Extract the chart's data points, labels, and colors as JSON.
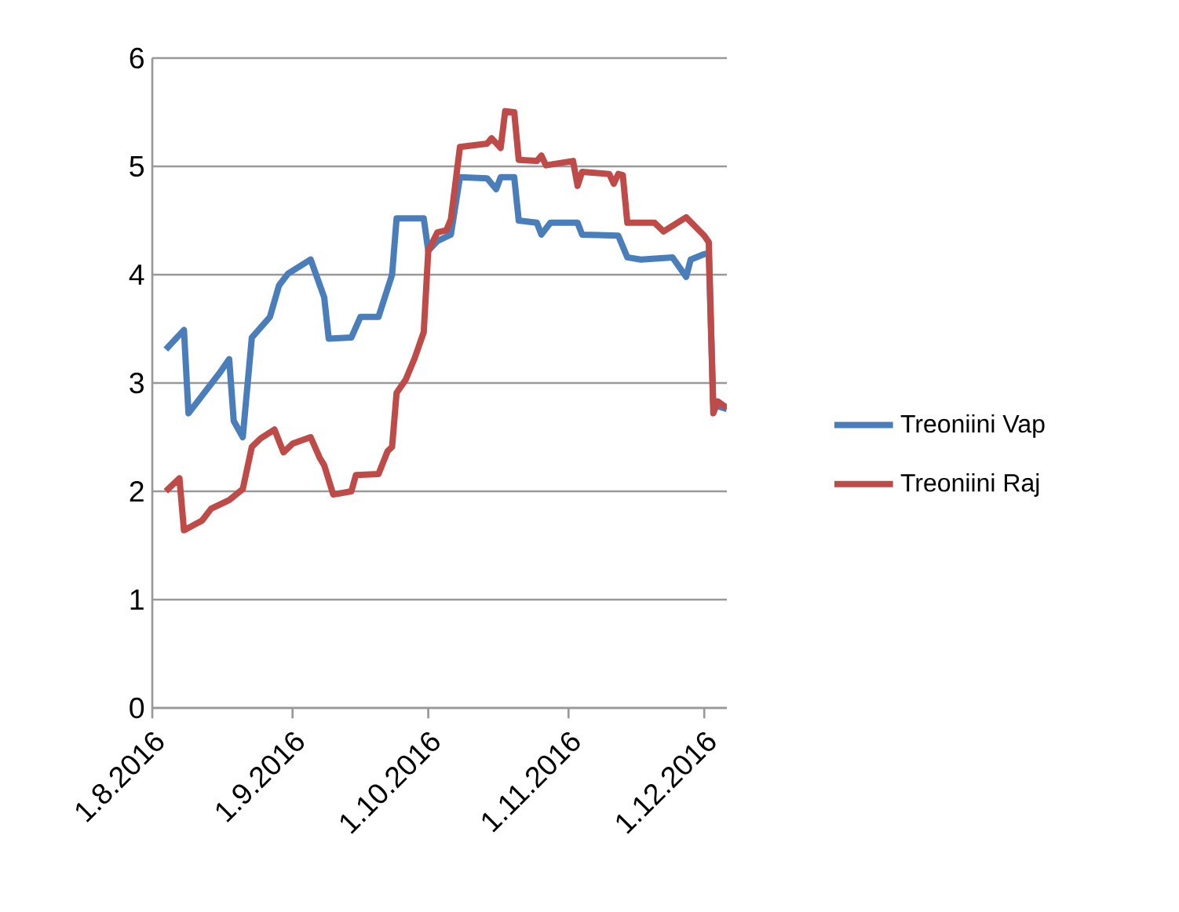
{
  "chart_data": {
    "type": "line",
    "xlim": [
      "2016-08-01",
      "2016-12-06"
    ],
    "xticks": [
      {
        "value": "2016-08-01",
        "label": "1.8.2016"
      },
      {
        "value": "2016-09-01",
        "label": "1.9.2016"
      },
      {
        "value": "2016-10-01",
        "label": "1.10.2016"
      },
      {
        "value": "2016-11-01",
        "label": "1.11.2016"
      },
      {
        "value": "2016-12-01",
        "label": "1.12.2016"
      }
    ],
    "ylim": [
      0,
      6
    ],
    "yticks": [
      0,
      1,
      2,
      3,
      4,
      5,
      6
    ],
    "grid": "y",
    "legend": "right",
    "marker": "none",
    "line_style": "solid",
    "series": [
      {
        "name": "Treoniini Vap",
        "color": "#4a7ebb",
        "x": [
          "2016-08-04",
          "2016-08-08",
          "2016-08-09",
          "2016-08-16",
          "2016-08-18",
          "2016-08-19",
          "2016-08-21",
          "2016-08-23",
          "2016-08-27",
          "2016-08-29",
          "2016-08-31",
          "2016-09-05",
          "2016-09-08",
          "2016-09-09",
          "2016-09-14",
          "2016-09-16",
          "2016-09-20",
          "2016-09-23",
          "2016-09-24",
          "2016-09-30",
          "2016-10-01",
          "2016-10-03",
          "2016-10-06",
          "2016-10-08",
          "2016-10-14",
          "2016-10-16",
          "2016-10-17",
          "2016-10-20",
          "2016-10-21",
          "2016-10-25",
          "2016-10-26",
          "2016-10-28",
          "2016-11-03",
          "2016-11-04",
          "2016-11-12",
          "2016-11-14",
          "2016-11-17",
          "2016-11-24",
          "2016-11-25",
          "2016-11-27",
          "2016-11-28",
          "2016-12-01",
          "2016-12-02",
          "2016-12-03",
          "2016-12-06"
        ],
        "values": [
          3.31,
          3.49,
          2.72,
          3.1,
          3.22,
          2.65,
          2.5,
          3.42,
          3.61,
          3.9,
          4.01,
          4.14,
          3.79,
          3.41,
          3.42,
          3.61,
          3.61,
          4.0,
          4.52,
          4.52,
          4.22,
          4.31,
          4.37,
          4.9,
          4.89,
          4.79,
          4.9,
          4.9,
          4.5,
          4.48,
          4.37,
          4.48,
          4.48,
          4.37,
          4.36,
          4.16,
          4.14,
          4.16,
          4.1,
          3.98,
          4.14,
          4.19,
          4.2,
          2.8,
          2.76
        ]
      },
      {
        "name": "Treoniini Raj",
        "color": "#be4b48",
        "x": [
          "2016-08-04",
          "2016-08-07",
          "2016-08-08",
          "2016-08-12",
          "2016-08-14",
          "2016-08-18",
          "2016-08-21",
          "2016-08-23",
          "2016-08-25",
          "2016-08-28",
          "2016-08-30",
          "2016-09-01",
          "2016-09-05",
          "2016-09-07",
          "2016-09-08",
          "2016-09-10",
          "2016-09-14",
          "2016-09-15",
          "2016-09-20",
          "2016-09-22",
          "2016-09-23",
          "2016-09-24",
          "2016-09-26",
          "2016-09-28",
          "2016-09-30",
          "2016-10-01",
          "2016-10-03",
          "2016-10-05",
          "2016-10-06",
          "2016-10-08",
          "2016-10-14",
          "2016-10-15",
          "2016-10-17",
          "2016-10-18",
          "2016-10-20",
          "2016-10-21",
          "2016-10-25",
          "2016-10-26",
          "2016-10-27",
          "2016-11-02",
          "2016-11-03",
          "2016-11-04",
          "2016-11-10",
          "2016-11-11",
          "2016-11-12",
          "2016-11-13",
          "2016-11-14",
          "2016-11-20",
          "2016-11-22",
          "2016-11-27",
          "2016-12-01",
          "2016-12-02",
          "2016-12-03",
          "2016-12-04",
          "2016-12-06"
        ],
        "values": [
          2.0,
          2.12,
          1.64,
          1.73,
          1.84,
          1.92,
          2.02,
          2.41,
          2.49,
          2.57,
          2.36,
          2.44,
          2.5,
          2.31,
          2.24,
          1.97,
          2.0,
          2.15,
          2.16,
          2.37,
          2.41,
          2.91,
          3.03,
          3.23,
          3.47,
          4.22,
          4.39,
          4.41,
          4.51,
          5.18,
          5.21,
          5.26,
          5.17,
          5.51,
          5.5,
          5.06,
          5.05,
          5.1,
          5.01,
          5.05,
          4.82,
          4.95,
          4.93,
          4.84,
          4.93,
          4.92,
          4.48,
          4.48,
          4.4,
          4.53,
          4.36,
          4.3,
          2.72,
          2.83,
          2.77
        ]
      }
    ]
  }
}
